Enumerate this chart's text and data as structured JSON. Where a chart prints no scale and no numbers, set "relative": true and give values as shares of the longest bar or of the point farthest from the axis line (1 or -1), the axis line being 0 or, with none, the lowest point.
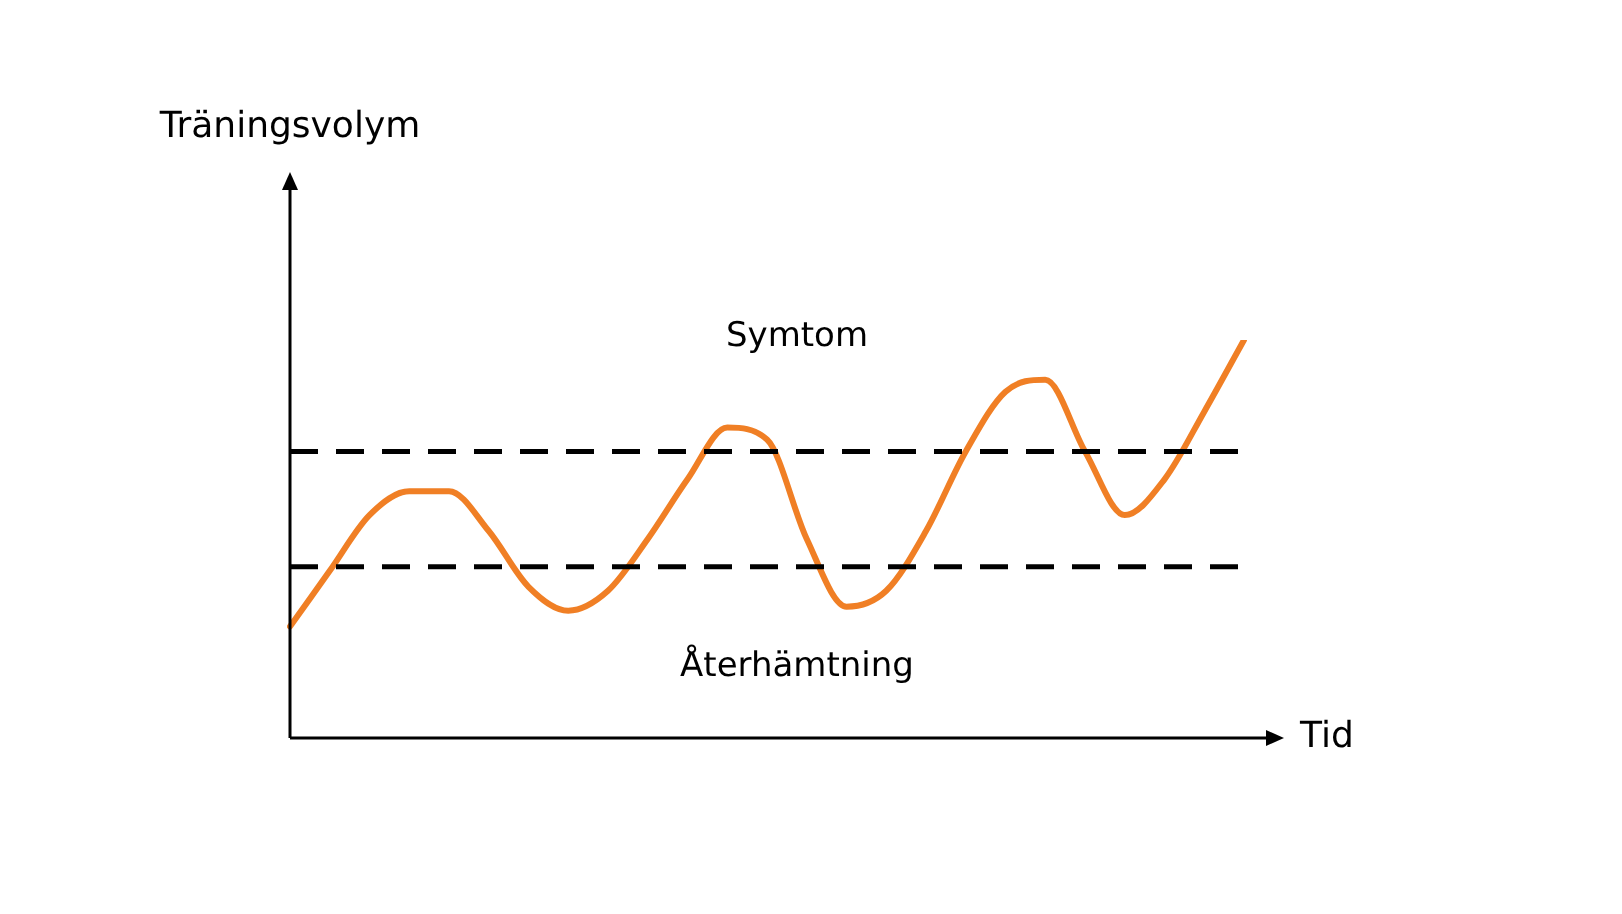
{
  "chart_data": {
    "type": "line",
    "relative": true,
    "xlabel": "Tid",
    "annotations": [
      "Träningsvolym"
    ],
    "categories": [
      null,
      null,
      null,
      null,
      null,
      null,
      null,
      null,
      null,
      null,
      null,
      null,
      null,
      null,
      null,
      null,
      null,
      null,
      null,
      null,
      null,
      null,
      null,
      null,
      null
    ],
    "series": [
      {
        "color": "#f07f25",
        "values": [
          0.28,
          0.42,
          0.56,
          0.62,
          0.62,
          0.52,
          0.38,
          0.32,
          0.37,
          0.5,
          0.65,
          0.78,
          0.75,
          0.5,
          0.33,
          0.37,
          0.52,
          0.72,
          0.87,
          0.9,
          0.72,
          0.56,
          0.65,
          0.82,
          1.0
        ]
      }
    ],
    "ref_lines": [
      {
        "axis": "y",
        "value": 0.72,
        "label": "Symtom",
        "color": "#000000",
        "line_style": "dashed"
      },
      {
        "axis": "y",
        "value": 0.43,
        "label": "Återhämtning",
        "color": "#000000",
        "line_style": "dashed"
      }
    ],
    "legend": false,
    "marker": "none",
    "line_style": "solid"
  }
}
